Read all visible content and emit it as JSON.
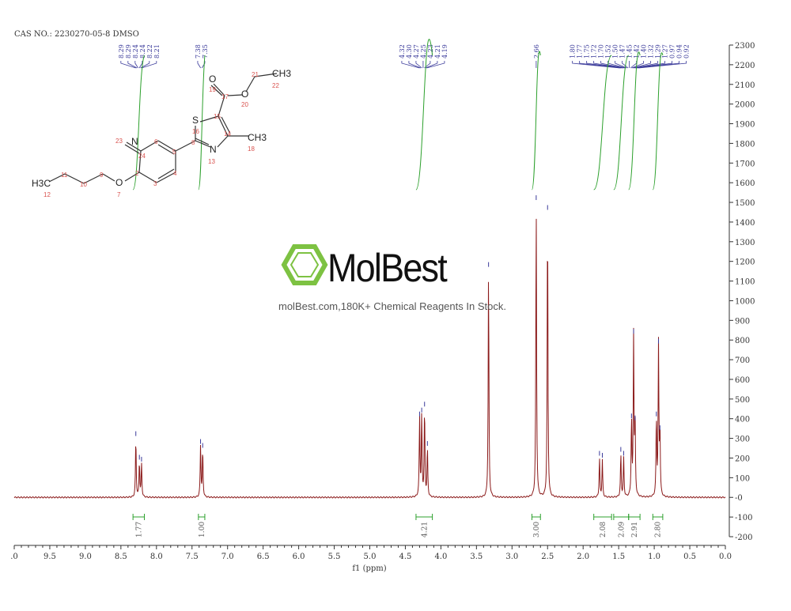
{
  "header": {
    "cas_label": "CAS NO.: 2230270-05-8 DMSO"
  },
  "watermark": {
    "brand": "MolBest",
    "tagline": "molBest.com,180K+ Chemical Reagents In Stock.",
    "logo_color": "#7dc242"
  },
  "colors": {
    "spectrum": "#8b1a1a",
    "peak_labels": "#3a3a9a",
    "integral": "#2ca02c",
    "atom_numbers": "#d9534f"
  },
  "chart_data": {
    "type": "line",
    "xlabel": "f1 (ppm)",
    "xlim": [
      10.0,
      0.0
    ],
    "ylim": [
      -200,
      2300
    ],
    "x_ticks": [
      ".0",
      "9.5",
      "9.0",
      "8.5",
      "8.0",
      "7.5",
      "7.0",
      "6.5",
      "6.0",
      "5.5",
      "5.0",
      "4.5",
      "4.0",
      "3.5",
      "3.0",
      "2.5",
      "2.0",
      "1.5",
      "1.0",
      "0.5",
      "0.0"
    ],
    "y_ticks": [
      "-200",
      "-100",
      "-0",
      "100",
      "200",
      "300",
      "400",
      "500",
      "600",
      "700",
      "800",
      "900",
      "1000",
      "1100",
      "1200",
      "1300",
      "1400",
      "1500",
      "1600",
      "1700",
      "1800",
      "1900",
      "2000",
      "2100",
      "2200",
      "2300"
    ],
    "peaks": [
      {
        "ppm": 8.29,
        "height": 300
      },
      {
        "ppm": 8.24,
        "height": 180
      },
      {
        "ppm": 8.21,
        "height": 170
      },
      {
        "ppm": 7.38,
        "height": 260
      },
      {
        "ppm": 7.35,
        "height": 240
      },
      {
        "ppm": 4.3,
        "height": 400
      },
      {
        "ppm": 4.27,
        "height": 420
      },
      {
        "ppm": 4.23,
        "height": 450
      },
      {
        "ppm": 4.19,
        "height": 250
      },
      {
        "ppm": 3.33,
        "height": 1160
      },
      {
        "ppm": 2.66,
        "height": 1500
      },
      {
        "ppm": 2.5,
        "height": 1450
      },
      {
        "ppm": 1.77,
        "height": 200
      },
      {
        "ppm": 1.73,
        "height": 190
      },
      {
        "ppm": 1.47,
        "height": 220
      },
      {
        "ppm": 1.43,
        "height": 200
      },
      {
        "ppm": 1.32,
        "height": 390
      },
      {
        "ppm": 1.29,
        "height": 820
      },
      {
        "ppm": 1.27,
        "height": 380
      },
      {
        "ppm": 0.97,
        "height": 400
      },
      {
        "ppm": 0.94,
        "height": 770
      },
      {
        "ppm": 0.92,
        "height": 330
      }
    ],
    "peak_label_groups": [
      {
        "labels": [
          "8.29",
          "8.29",
          "8.24",
          "8.24",
          "8.22",
          "8.21"
        ],
        "center": 8.25
      },
      {
        "labels": [
          "7.38",
          "7.35"
        ],
        "center": 7.37
      },
      {
        "labels": [
          "4.32",
          "4.30",
          "4.27",
          "4.25",
          "4.23",
          "4.21",
          "4.19"
        ],
        "center": 4.25
      },
      {
        "labels": [
          "2.66"
        ],
        "center": 2.66
      },
      {
        "labels": [
          "1.80",
          "1.77",
          "1.75",
          "1.72",
          "1.70",
          "1.52",
          "1.50",
          "1.47",
          "1.45",
          "1.42",
          "1.40",
          "1.32",
          "1.29",
          "1.27",
          "0.97",
          "0.94",
          "0.92"
        ],
        "center": 1.35
      }
    ],
    "integrals": [
      {
        "from": 8.33,
        "to": 8.17,
        "value": "1.77"
      },
      {
        "from": 7.41,
        "to": 7.32,
        "value": "1.00"
      },
      {
        "from": 4.35,
        "to": 4.12,
        "value": "4.21"
      },
      {
        "from": 2.72,
        "to": 2.6,
        "value": "3.00"
      },
      {
        "from": 1.85,
        "to": 1.6,
        "value": "2.08"
      },
      {
        "from": 1.57,
        "to": 1.36,
        "value": "2.09"
      },
      {
        "from": 1.36,
        "to": 1.2,
        "value": "2.91"
      },
      {
        "from": 1.02,
        "to": 0.88,
        "value": "2.80"
      }
    ]
  },
  "structure": {
    "labels": [
      {
        "t": "CH3",
        "k": "atom"
      },
      {
        "t": "22",
        "k": "num"
      },
      {
        "t": "21",
        "k": "num"
      },
      {
        "t": "O",
        "k": "atom"
      },
      {
        "t": "20",
        "k": "num"
      },
      {
        "t": "17",
        "k": "num"
      },
      {
        "t": "O",
        "k": "atom"
      },
      {
        "t": "19",
        "k": "num"
      },
      {
        "t": "15",
        "k": "num"
      },
      {
        "t": "S",
        "k": "atom"
      },
      {
        "t": "16",
        "k": "num"
      },
      {
        "t": "14",
        "k": "num"
      },
      {
        "t": "CH3",
        "k": "atom"
      },
      {
        "t": "18",
        "k": "num"
      },
      {
        "t": "8",
        "k": "num"
      },
      {
        "t": "N",
        "k": "atom"
      },
      {
        "t": "13",
        "k": "num"
      },
      {
        "t": "5",
        "k": "num"
      },
      {
        "t": "6",
        "k": "num"
      },
      {
        "t": "4",
        "k": "num"
      },
      {
        "t": "3",
        "k": "num"
      },
      {
        "t": "2",
        "k": "num"
      },
      {
        "t": "24",
        "k": "num"
      },
      {
        "t": "23",
        "k": "num"
      },
      {
        "t": "N",
        "k": "atom"
      },
      {
        "t": "O",
        "k": "atom"
      },
      {
        "t": "7",
        "k": "num"
      },
      {
        "t": "9",
        "k": "num"
      },
      {
        "t": "10",
        "k": "num"
      },
      {
        "t": "11",
        "k": "num"
      },
      {
        "t": "H3C",
        "k": "atom"
      },
      {
        "t": "12",
        "k": "num"
      }
    ]
  }
}
